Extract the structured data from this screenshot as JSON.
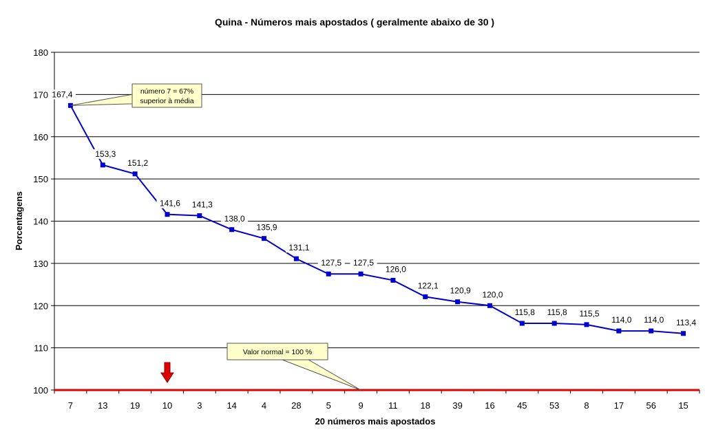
{
  "chart_data": {
    "type": "line",
    "title": "Quina - Números mais apostados ( geralmente abaixo de 30 )",
    "xlabel": "20 números mais apostados",
    "ylabel": "Porcentagens",
    "ylim": [
      100,
      180
    ],
    "yticks": [
      100,
      110,
      120,
      130,
      140,
      150,
      160,
      170,
      180
    ],
    "grid": true,
    "categories": [
      "7",
      "13",
      "19",
      "10",
      "3",
      "14",
      "4",
      "28",
      "5",
      "9",
      "11",
      "18",
      "39",
      "16",
      "45",
      "53",
      "8",
      "17",
      "56",
      "15"
    ],
    "series": [
      {
        "values": [
          167.4,
          153.3,
          151.2,
          141.6,
          141.3,
          138.0,
          135.9,
          131.1,
          127.5,
          127.5,
          126.0,
          122.1,
          120.9,
          120.0,
          115.8,
          115.8,
          115.5,
          114.0,
          114.0,
          113.4
        ],
        "labels": [
          "167,4",
          "153,3",
          "151,2",
          "141,6",
          "141,3",
          "138,0",
          "135,9",
          "131,1",
          "127,5",
          "127,5",
          "126,0",
          "122,1",
          "120,9",
          "120,0",
          "115,8",
          "115,8",
          "115,5",
          "114,0",
          "114,0",
          "113,4"
        ],
        "color": "#0000cc"
      }
    ],
    "baseline": {
      "value": 100,
      "color": "#dd0000"
    },
    "arrow_marker": {
      "category": "10",
      "color": "#dd0000"
    },
    "annotations": [
      {
        "lines": [
          "número 7 = 67%",
          "superior à média"
        ],
        "target_category": "7",
        "target_value": 167.4
      },
      {
        "lines": [
          "Valor normal = 100 %"
        ],
        "target_category": "9",
        "target_value": 100
      }
    ],
    "callout_fill": "#ffffcc"
  }
}
